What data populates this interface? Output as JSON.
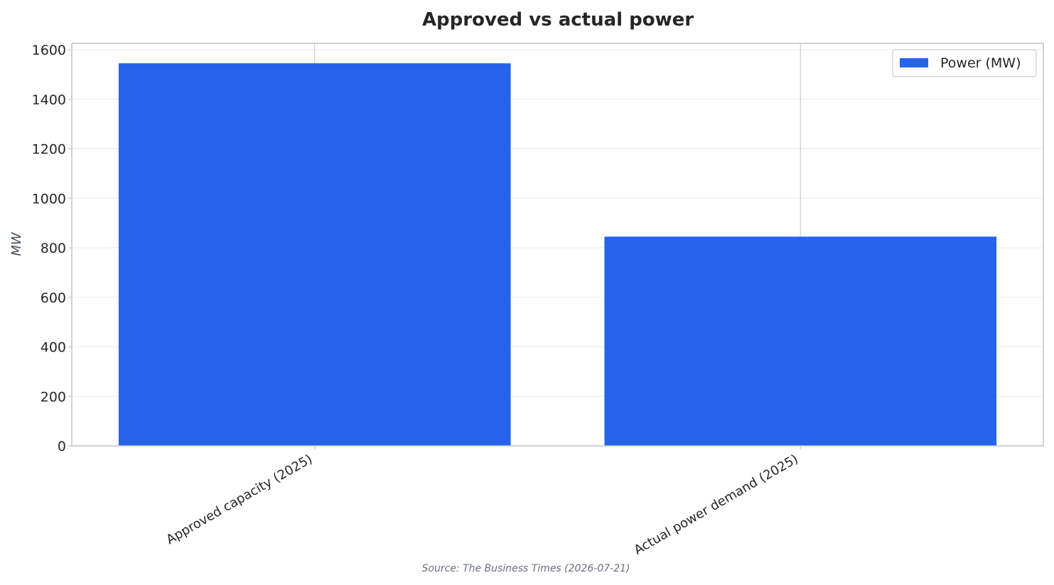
{
  "chart_data": {
    "type": "bar",
    "title": "Approved vs actual power",
    "xlabel": "",
    "ylabel": "MW",
    "categories": [
      "Approved capacity (2025)",
      "Actual power demand (2025)"
    ],
    "series": [
      {
        "name": "Power (MW)",
        "values": [
          1545,
          845
        ],
        "color": "#2563eb"
      }
    ],
    "ylim": [
      0,
      1600
    ],
    "yticks": [
      0,
      200,
      400,
      600,
      800,
      1000,
      1200,
      1400,
      1600
    ],
    "grid": true,
    "legend_position": "top-right",
    "source": "Source: The Business Times (2026-07-21)"
  }
}
